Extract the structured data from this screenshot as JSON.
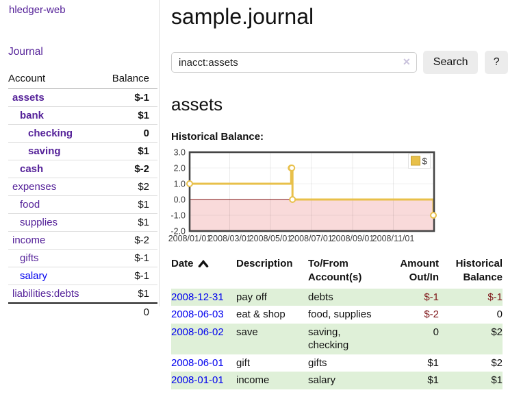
{
  "colors": {
    "accent_yellow": "#E8C04A",
    "link_purple": "#552299",
    "link_blue": "#0000EE",
    "negative_strong": "#7E1518",
    "negative_muted": "#B36F70",
    "row_green": "#DFF0D8",
    "zero_line": "#7B0C0C",
    "negative_region": "#F9DADA"
  },
  "sidebar": {
    "title": "hledger-web",
    "nav": {
      "journal_label": "Journal"
    },
    "accounts_table": {
      "headers": [
        "Account",
        "Balance"
      ],
      "rows": [
        {
          "account": "assets",
          "level": 1,
          "bold": true,
          "balance": "$-1",
          "balance_style": "negative_strong"
        },
        {
          "account": "bank",
          "level": 2,
          "bold": true,
          "balance": "$1",
          "balance_style": "normal"
        },
        {
          "account": "checking",
          "level": 3,
          "bold": true,
          "balance": "0",
          "balance_style": "normal"
        },
        {
          "account": "saving",
          "level": 3,
          "bold": true,
          "balance": "$1",
          "balance_style": "normal"
        },
        {
          "account": "cash",
          "level": 2,
          "bold": true,
          "balance": "$-2",
          "balance_style": "negative_strong"
        },
        {
          "account": "expenses",
          "level": 1,
          "bold": false,
          "balance": "$2",
          "balance_style": "normal"
        },
        {
          "account": "food",
          "level": 2,
          "bold": false,
          "balance": "$1",
          "balance_style": "normal"
        },
        {
          "account": "supplies",
          "level": 2,
          "bold": false,
          "balance": "$1",
          "balance_style": "normal"
        },
        {
          "account": "income",
          "level": 1,
          "bold": false,
          "balance": "$-2",
          "balance_style": "negative_muted"
        },
        {
          "account": "gifts",
          "level": 2,
          "bold": false,
          "balance": "$-1",
          "balance_style": "negative_muted"
        },
        {
          "account": "salary",
          "level": 2,
          "bold": false,
          "balance": "$-1",
          "balance_style": "negative_muted",
          "link_color": "blue"
        },
        {
          "account": "liabilities:debts",
          "level": 1,
          "bold": false,
          "balance": "$1",
          "balance_style": "normal"
        }
      ],
      "total": "0"
    }
  },
  "main": {
    "title": "sample.journal",
    "search": {
      "value": "inacct:assets",
      "clear_icon": "✕",
      "search_button": "Search",
      "help_button": "?"
    },
    "account_heading": "assets",
    "chart_label": "Historical Balance:"
  },
  "chart_data": {
    "type": "line",
    "step": true,
    "title": "Historical Balance",
    "x": [
      "2008-01-01",
      "2008-06-01",
      "2008-06-02",
      "2008-06-03",
      "2008-12-31"
    ],
    "series": [
      {
        "name": "$",
        "values": [
          1,
          2,
          2,
          0,
          -1
        ]
      }
    ],
    "xlim": [
      "2008-01-01",
      "2009-01-01"
    ],
    "ylim": [
      -2,
      3
    ],
    "x_ticks": [
      "2008/01/01",
      "2008/03/01",
      "2008/05/01",
      "2008/07/01",
      "2008/09/01",
      "2008/11/01"
    ],
    "y_ticks": [
      3.0,
      2.0,
      1.0,
      0.0,
      -1.0,
      -2.0
    ],
    "grid": true,
    "legend_position": "top-right",
    "xlabel": "",
    "ylabel": ""
  },
  "register": {
    "headers": [
      {
        "lines": [
          "Date"
        ],
        "align": "left",
        "sorted": "asc"
      },
      {
        "lines": [
          "Description"
        ],
        "align": "left"
      },
      {
        "lines": [
          "To/From",
          "Account(s)"
        ],
        "align": "left"
      },
      {
        "lines": [
          "Amount",
          "Out/In"
        ],
        "align": "right"
      },
      {
        "lines": [
          "Historical",
          "Balance"
        ],
        "align": "right"
      }
    ],
    "rows": [
      {
        "date": "2008-12-31",
        "description": "pay off",
        "accounts": "debts",
        "amount": "$-1",
        "amount_style": "negative",
        "balance": "$-1",
        "balance_style": "negative",
        "shaded": true
      },
      {
        "date": "2008-06-03",
        "description": "eat & shop",
        "accounts": "food, supplies",
        "amount": "$-2",
        "amount_style": "negative",
        "balance": "0",
        "balance_style": "normal",
        "shaded": false
      },
      {
        "date": "2008-06-02",
        "description": "save",
        "accounts": "saving, checking",
        "amount": "0",
        "amount_style": "normal",
        "balance": "$2",
        "balance_style": "normal",
        "shaded": true
      },
      {
        "date": "2008-06-01",
        "description": "gift",
        "accounts": "gifts",
        "amount": "$1",
        "amount_style": "normal",
        "balance": "$2",
        "balance_style": "normal",
        "shaded": false
      },
      {
        "date": "2008-01-01",
        "description": "income",
        "accounts": "salary",
        "amount": "$1",
        "amount_style": "normal",
        "balance": "$1",
        "balance_style": "normal",
        "shaded": true
      }
    ]
  }
}
